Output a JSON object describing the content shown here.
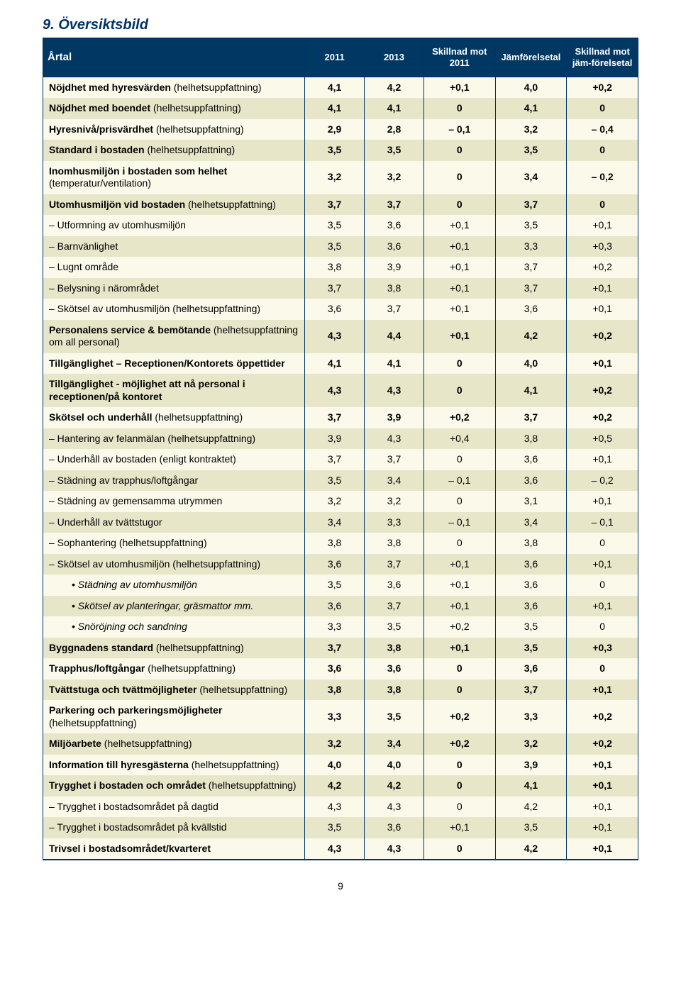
{
  "title": "9. Översiktsbild",
  "pageNumber": "9",
  "columns": {
    "rowHeader": "Årtal",
    "c1": "2011",
    "c2": "2013",
    "c3": "Skillnad mot 2011",
    "c4": "Jämförelsetal",
    "c5": "Skillnad mot jäm-förelsetal"
  },
  "colors": {
    "headerBg": "#003864",
    "headerFg": "#ffffff",
    "titleColor": "#003366",
    "bandLight": "#faf9ea",
    "bandDark": "#e7e6c8",
    "border": "#003366"
  },
  "rows": [
    {
      "label": "Nöjdhet med hyresvärden (helhetsuppfattning)",
      "v": [
        "4,1",
        "4,2",
        "+0,1",
        "4,0",
        "+0,2"
      ],
      "bold": true,
      "band": "light"
    },
    {
      "label": "Nöjdhet med boendet (helhetsuppfattning)",
      "v": [
        "4,1",
        "4,1",
        "0",
        "4,1",
        "0"
      ],
      "bold": true,
      "band": "dark"
    },
    {
      "label": "Hyresnivå/prisvärdhet (helhetsuppfattning)",
      "v": [
        "2,9",
        "2,8",
        "– 0,1",
        "3,2",
        "– 0,4"
      ],
      "bold": true,
      "band": "light"
    },
    {
      "label": "Standard i bostaden (helhetsuppfattning)",
      "v": [
        "3,5",
        "3,5",
        "0",
        "3,5",
        "0"
      ],
      "bold": true,
      "band": "dark"
    },
    {
      "label": "Inomhusmiljön i bostaden som helhet (temperatur/ventilation)",
      "v": [
        "3,2",
        "3,2",
        "0",
        "3,4",
        "– 0,2"
      ],
      "bold": true,
      "band": "light"
    },
    {
      "label": "Utomhusmiljön vid bostaden (helhetsuppfattning)",
      "v": [
        "3,7",
        "3,7",
        "0",
        "3,7",
        "0"
      ],
      "bold": true,
      "band": "dark"
    },
    {
      "label": "– Utformning av utomhusmiljön",
      "v": [
        "3,5",
        "3,6",
        "+0,1",
        "3,5",
        "+0,1"
      ],
      "band": "light"
    },
    {
      "label": "– Barnvänlighet",
      "v": [
        "3,5",
        "3,6",
        "+0,1",
        "3,3",
        "+0,3"
      ],
      "band": "dark"
    },
    {
      "label": "– Lugnt område",
      "v": [
        "3,8",
        "3,9",
        "+0,1",
        "3,7",
        "+0,2"
      ],
      "band": "light"
    },
    {
      "label": "– Belysning i närområdet",
      "v": [
        "3,7",
        "3,8",
        "+0,1",
        "3,7",
        "+0,1"
      ],
      "band": "dark"
    },
    {
      "label": "– Skötsel av utomhusmiljön (helhetsuppfattning)",
      "v": [
        "3,6",
        "3,7",
        "+0,1",
        "3,6",
        "+0,1"
      ],
      "band": "light"
    },
    {
      "label": "Personalens service & bemötande (helhetsuppfattning om all personal)",
      "v": [
        "4,3",
        "4,4",
        "+0,1",
        "4,2",
        "+0,2"
      ],
      "bold": true,
      "band": "dark"
    },
    {
      "label": "Tillgänglighet – Receptionen/Kontorets öppettider",
      "v": [
        "4,1",
        "4,1",
        "0",
        "4,0",
        "+0,1"
      ],
      "bold": true,
      "band": "light"
    },
    {
      "label": "Tillgänglighet - möjlighet att nå personal i receptionen/på kontoret",
      "v": [
        "4,3",
        "4,3",
        "0",
        "4,1",
        "+0,2"
      ],
      "bold": true,
      "band": "dark"
    },
    {
      "label": "Skötsel och underhåll (helhetsuppfattning)",
      "v": [
        "3,7",
        "3,9",
        "+0,2",
        "3,7",
        "+0,2"
      ],
      "bold": true,
      "band": "light"
    },
    {
      "label": "– Hantering av felanmälan (helhetsuppfattning)",
      "v": [
        "3,9",
        "4,3",
        "+0,4",
        "3,8",
        "+0,5"
      ],
      "band": "dark"
    },
    {
      "label": "– Underhåll av bostaden (enligt kontraktet)",
      "v": [
        "3,7",
        "3,7",
        "0",
        "3,6",
        "+0,1"
      ],
      "band": "light"
    },
    {
      "label": "– Städning av trapphus/loftgångar",
      "v": [
        "3,5",
        "3,4",
        "– 0,1",
        "3,6",
        "– 0,2"
      ],
      "band": "dark"
    },
    {
      "label": "– Städning av gemensamma utrymmen",
      "v": [
        "3,2",
        "3,2",
        "0",
        "3,1",
        "+0,1"
      ],
      "band": "light"
    },
    {
      "label": "– Underhåll av tvättstugor",
      "v": [
        "3,4",
        "3,3",
        "– 0,1",
        "3,4",
        "– 0,1"
      ],
      "band": "dark"
    },
    {
      "label": "– Sophantering (helhetsuppfattning)",
      "v": [
        "3,8",
        "3,8",
        "0",
        "3,8",
        "0"
      ],
      "band": "light"
    },
    {
      "label": "– Skötsel av utomhusmiljön (helhetsuppfattning)",
      "v": [
        "3,6",
        "3,7",
        "+0,1",
        "3,6",
        "+0,1"
      ],
      "band": "dark"
    },
    {
      "label": "• Städning av utomhusmiljön",
      "v": [
        "3,5",
        "3,6",
        "+0,1",
        "3,6",
        "0"
      ],
      "indent": 2,
      "band": "light"
    },
    {
      "label": "• Skötsel av planteringar, gräsmattor mm.",
      "v": [
        "3,6",
        "3,7",
        "+0,1",
        "3,6",
        "+0,1"
      ],
      "indent": 2,
      "band": "dark"
    },
    {
      "label": "• Snöröjning och sandning",
      "v": [
        "3,3",
        "3,5",
        "+0,2",
        "3,5",
        "0"
      ],
      "indent": 2,
      "band": "light"
    },
    {
      "label": "Byggnadens standard (helhetsuppfattning)",
      "v": [
        "3,7",
        "3,8",
        "+0,1",
        "3,5",
        "+0,3"
      ],
      "bold": true,
      "band": "dark"
    },
    {
      "label": "Trapphus/loftgångar (helhetsuppfattning)",
      "v": [
        "3,6",
        "3,6",
        "0",
        "3,6",
        "0"
      ],
      "bold": true,
      "band": "light"
    },
    {
      "label": "Tvättstuga och tvättmöjligheter (helhetsuppfattning)",
      "v": [
        "3,8",
        "3,8",
        "0",
        "3,7",
        "+0,1"
      ],
      "bold": true,
      "band": "dark"
    },
    {
      "label": "Parkering och parkeringsmöjligheter (helhetsuppfattning)",
      "v": [
        "3,3",
        "3,5",
        "+0,2",
        "3,3",
        "+0,2"
      ],
      "bold": true,
      "band": "light"
    },
    {
      "label": "Miljöarbete (helhetsuppfattning)",
      "v": [
        "3,2",
        "3,4",
        "+0,2",
        "3,2",
        "+0,2"
      ],
      "bold": true,
      "band": "dark"
    },
    {
      "label": "Information till hyresgästerna (helhetsuppfattning)",
      "v": [
        "4,0",
        "4,0",
        "0",
        "3,9",
        "+0,1"
      ],
      "bold": true,
      "band": "light"
    },
    {
      "label": "Trygghet i bostaden och området (helhetsuppfattning)",
      "v": [
        "4,2",
        "4,2",
        "0",
        "4,1",
        "+0,1"
      ],
      "bold": true,
      "band": "dark"
    },
    {
      "label": "– Trygghet i bostadsområdet på dagtid",
      "v": [
        "4,3",
        "4,3",
        "0",
        "4,2",
        "+0,1"
      ],
      "band": "light"
    },
    {
      "label": "– Trygghet i bostadsområdet på kvällstid",
      "v": [
        "3,5",
        "3,6",
        "+0,1",
        "3,5",
        "+0,1"
      ],
      "band": "dark"
    },
    {
      "label": "Trivsel i bostadsområdet/kvarteret",
      "v": [
        "4,3",
        "4,3",
        "0",
        "4,2",
        "+0,1"
      ],
      "bold": true,
      "band": "light"
    }
  ]
}
